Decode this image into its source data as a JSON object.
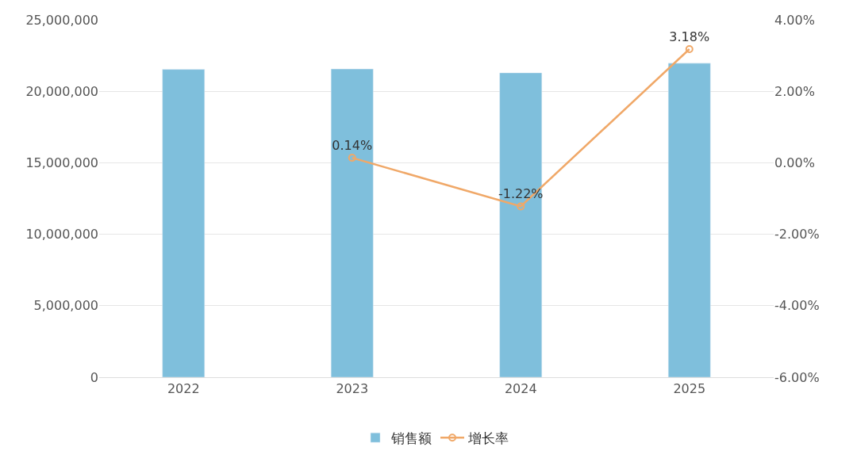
{
  "chart_data": {
    "type": "bar",
    "categories": [
      "2022",
      "2023",
      "2024",
      "2025"
    ],
    "series": [
      {
        "name": "销售额",
        "color": "#7fbfdc",
        "values": [
          21530000,
          21560000,
          21290000,
          21960000
        ]
      },
      {
        "name": "增长率",
        "type": "line",
        "axis": "y2",
        "color": "#f0a868",
        "marker": "circle",
        "values": [
          null,
          0.14,
          -1.22,
          3.18
        ],
        "value_labels": [
          null,
          "0.14%",
          "-1.22%",
          "3.18%"
        ]
      }
    ],
    "ylim": [
      0,
      25000000
    ],
    "yticks": [
      0,
      {
        "value": 5000000,
        "label": "5,000,000"
      },
      {
        "value": 10000000,
        "label": "10,000,000"
      },
      {
        "value": 15000000,
        "label": "15,000,000"
      },
      {
        "value": 20000000,
        "label": "20,000,000"
      },
      {
        "value": 25000000,
        "label": "25,000,000"
      }
    ],
    "y2lim": [
      -6,
      4
    ],
    "y2ticks": [
      {
        "value": -6,
        "label": "-6.00%"
      },
      {
        "value": -4,
        "label": "-4.00%"
      },
      {
        "value": -2,
        "label": "-2.00%"
      },
      {
        "value": 0,
        "label": "0.00%"
      },
      {
        "value": 2,
        "label": "2.00%"
      },
      {
        "value": 4,
        "label": "4.00%"
      }
    ],
    "grid": "y",
    "legend": "bottom"
  }
}
